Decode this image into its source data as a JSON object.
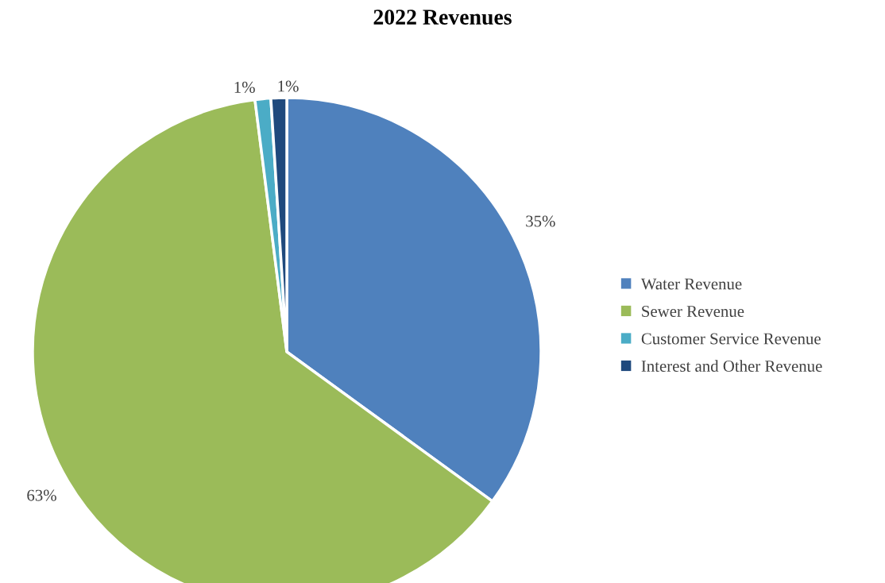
{
  "chart_data": {
    "type": "pie",
    "title": "2022 Revenues",
    "categories": [
      "Water Revenue",
      "Sewer Revenue",
      "Customer Service Revenue",
      "Interest and Other Revenue"
    ],
    "values": [
      35,
      63,
      1,
      1
    ],
    "colors": [
      "#4f81bd",
      "#9bbb59",
      "#4bacc6",
      "#1f497d"
    ],
    "value_labels": [
      "35%",
      "63%",
      "1%",
      "1%"
    ],
    "legend": "right"
  }
}
